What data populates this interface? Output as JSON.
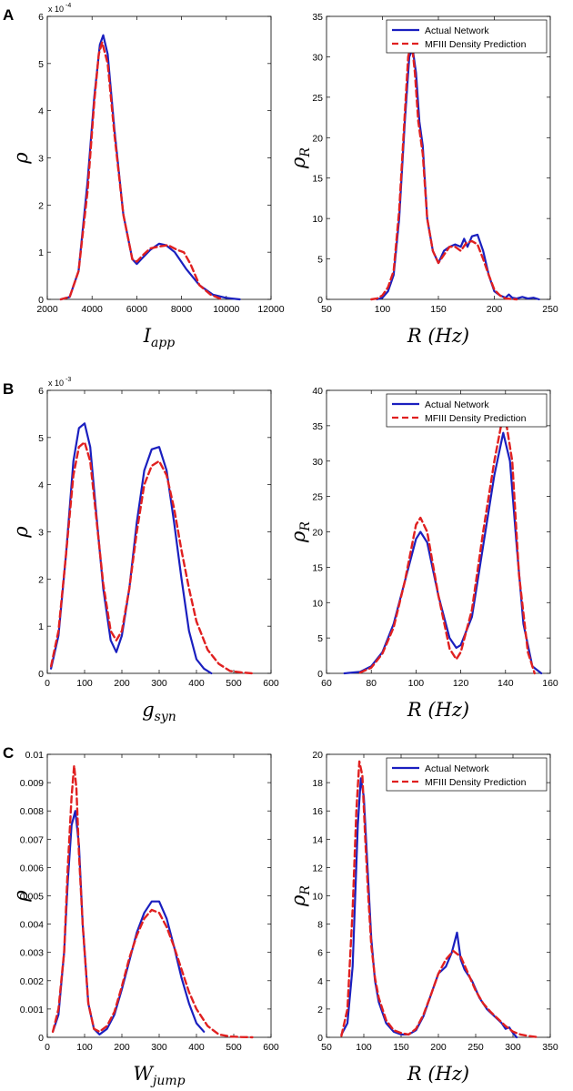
{
  "panel_labels": [
    "A",
    "B",
    "C"
  ],
  "colors": {
    "actual": "#1a1fbf",
    "predicted": "#e02020"
  },
  "chart_data": [
    {
      "type": "line",
      "panel": "A",
      "xlabel": "I",
      "xlabel_sub": "app",
      "ylabel": "ρ",
      "ylabel_sub": "",
      "xlim": [
        2000,
        12000
      ],
      "ylim": [
        0,
        6
      ],
      "y_multiplier": "x 10",
      "y_multiplier_exp": "-4",
      "xticks": [
        2000,
        4000,
        6000,
        8000,
        10000,
        12000
      ],
      "yticks": [
        0,
        1,
        2,
        3,
        4,
        5,
        6
      ],
      "xtick_labels": [
        "2000",
        "4000",
        "6000",
        "8000",
        "10000",
        "12000"
      ],
      "ytick_labels": [
        "0",
        "1",
        "2",
        "3",
        "4",
        "5",
        "6"
      ],
      "legend": null,
      "series": [
        {
          "name": "Actual Network",
          "x": [
            2600,
            3000,
            3400,
            3800,
            4100,
            4350,
            4500,
            4700,
            5000,
            5400,
            5800,
            6000,
            6200,
            6600,
            7000,
            7300,
            7700,
            8200,
            8800,
            9400,
            10000,
            10600
          ],
          "y": [
            0,
            0.05,
            0.6,
            2.5,
            4.3,
            5.4,
            5.6,
            5.2,
            3.6,
            1.8,
            0.85,
            0.75,
            0.85,
            1.05,
            1.18,
            1.15,
            1.0,
            0.65,
            0.3,
            0.1,
            0.03,
            0
          ]
        },
        {
          "name": "MFIII Density Prediction",
          "x": [
            2600,
            3000,
            3400,
            3800,
            4100,
            4300,
            4450,
            4700,
            5000,
            5400,
            5800,
            6000,
            6300,
            6600,
            7000,
            7400,
            7800,
            8100,
            8400,
            8800,
            9300,
            9800
          ],
          "y": [
            0,
            0.05,
            0.6,
            2.3,
            4.2,
            5.2,
            5.45,
            5.0,
            3.5,
            1.8,
            0.85,
            0.8,
            0.95,
            1.08,
            1.12,
            1.15,
            1.05,
            1.0,
            0.75,
            0.3,
            0.1,
            0
          ]
        }
      ]
    },
    {
      "type": "line",
      "panel": "A",
      "xlabel": "R (Hz)",
      "xlabel_sub": "",
      "ylabel": "ρ",
      "ylabel_sub": "R",
      "xlim": [
        50,
        250
      ],
      "ylim": [
        0,
        35
      ],
      "y_multiplier": "",
      "y_multiplier_exp": "",
      "xticks": [
        50,
        100,
        150,
        200,
        250
      ],
      "yticks": [
        0,
        5,
        10,
        15,
        20,
        25,
        30,
        35
      ],
      "xtick_labels": [
        "50",
        "100",
        "150",
        "200",
        "250"
      ],
      "ytick_labels": [
        "0",
        "5",
        "10",
        "15",
        "20",
        "25",
        "30",
        "35"
      ],
      "legend": [
        "Actual Network",
        "MFIII Density Prediction"
      ],
      "series": [
        {
          "name": "Actual Network",
          "x": [
            95,
            100,
            105,
            110,
            115,
            120,
            124,
            127,
            130,
            133,
            136,
            140,
            145,
            150,
            155,
            160,
            165,
            170,
            173,
            176,
            180,
            185,
            190,
            195,
            200,
            205,
            210,
            213,
            216,
            220,
            225,
            230,
            235,
            240
          ],
          "y": [
            0,
            0.2,
            1,
            3,
            10,
            22,
            30,
            31,
            28,
            22,
            19,
            10,
            6,
            4.5,
            6,
            6.5,
            6.8,
            6.5,
            7.5,
            6.5,
            7.8,
            8,
            6,
            3,
            1,
            0.5,
            0.2,
            0.6,
            0.2,
            0.1,
            0.3,
            0.1,
            0.2,
            0
          ]
        },
        {
          "name": "MFIII Density Prediction",
          "x": [
            90,
            95,
            100,
            105,
            110,
            115,
            120,
            123,
            126,
            129,
            132,
            136,
            140,
            145,
            150,
            155,
            160,
            165,
            170,
            175,
            180,
            185,
            190,
            195,
            200,
            205,
            210,
            220
          ],
          "y": [
            0,
            0.1,
            0.5,
            1.5,
            3.5,
            11,
            23,
            30,
            32,
            28,
            22,
            18,
            10,
            6,
            4.5,
            5.5,
            6.5,
            6.5,
            6,
            7,
            7.2,
            6.8,
            5,
            3,
            1.2,
            0.5,
            0.1,
            0
          ]
        }
      ]
    },
    {
      "type": "line",
      "panel": "B",
      "xlabel": "g",
      "xlabel_sub": "syn",
      "ylabel": "ρ",
      "ylabel_sub": "",
      "xlim": [
        0,
        600
      ],
      "ylim": [
        0,
        6
      ],
      "y_multiplier": "x 10",
      "y_multiplier_exp": "-3",
      "xticks": [
        0,
        100,
        200,
        300,
        400,
        500,
        600
      ],
      "yticks": [
        0,
        1,
        2,
        3,
        4,
        5,
        6
      ],
      "xtick_labels": [
        "0",
        "100",
        "200",
        "300",
        "400",
        "500",
        "600"
      ],
      "ytick_labels": [
        "0",
        "1",
        "2",
        "3",
        "4",
        "5",
        "6"
      ],
      "legend": null,
      "series": [
        {
          "name": "Actual Network",
          "x": [
            10,
            30,
            50,
            70,
            85,
            100,
            115,
            130,
            150,
            170,
            185,
            200,
            220,
            240,
            260,
            280,
            300,
            320,
            340,
            360,
            380,
            400,
            420,
            440
          ],
          "y": [
            0.1,
            0.8,
            2.5,
            4.5,
            5.2,
            5.3,
            4.8,
            3.5,
            1.8,
            0.7,
            0.45,
            0.8,
            1.8,
            3.2,
            4.3,
            4.75,
            4.8,
            4.3,
            3.2,
            2.0,
            0.9,
            0.3,
            0.1,
            0
          ]
        },
        {
          "name": "MFIII Density Prediction",
          "x": [
            10,
            30,
            50,
            70,
            85,
            100,
            115,
            130,
            150,
            170,
            185,
            200,
            220,
            240,
            260,
            280,
            300,
            320,
            340,
            360,
            380,
            400,
            430,
            460,
            490,
            520,
            550
          ],
          "y": [
            0.15,
            0.9,
            2.5,
            4.2,
            4.8,
            4.9,
            4.5,
            3.4,
            1.9,
            0.9,
            0.7,
            0.9,
            1.8,
            3.0,
            4.0,
            4.4,
            4.5,
            4.2,
            3.5,
            2.6,
            1.8,
            1.1,
            0.5,
            0.2,
            0.05,
            0.02,
            0
          ]
        }
      ]
    },
    {
      "type": "line",
      "panel": "B",
      "xlabel": "R (Hz)",
      "xlabel_sub": "",
      "ylabel": "ρ",
      "ylabel_sub": "R",
      "xlim": [
        60,
        160
      ],
      "ylim": [
        0,
        40
      ],
      "y_multiplier": "",
      "y_multiplier_exp": "",
      "xticks": [
        60,
        80,
        100,
        120,
        140,
        160
      ],
      "yticks": [
        0,
        5,
        10,
        15,
        20,
        25,
        30,
        35,
        40
      ],
      "xtick_labels": [
        "60",
        "80",
        "100",
        "120",
        "140",
        "160"
      ],
      "ytick_labels": [
        "0",
        "5",
        "10",
        "15",
        "20",
        "25",
        "30",
        "35",
        "40"
      ],
      "legend": [
        "Actual Network",
        "MFIII Density Prediction"
      ],
      "series": [
        {
          "name": "Actual Network",
          "x": [
            68,
            75,
            80,
            85,
            90,
            95,
            100,
            102,
            105,
            110,
            115,
            118,
            120,
            125,
            130,
            135,
            139,
            142,
            145,
            148,
            152,
            156
          ],
          "y": [
            0,
            0.2,
            1,
            3,
            7,
            13,
            19,
            20,
            18.5,
            11,
            5,
            3.6,
            4,
            8,
            18,
            28,
            34,
            30,
            18,
            7,
            1,
            0
          ]
        },
        {
          "name": "MFIII Density Prediction",
          "x": [
            75,
            80,
            85,
            90,
            95,
            100,
            102,
            105,
            110,
            115,
            118,
            120,
            125,
            130,
            135,
            138,
            140,
            143,
            146,
            150,
            153
          ],
          "y": [
            0.1,
            0.8,
            2.8,
            6.5,
            13,
            21,
            22,
            20,
            11,
            3.5,
            2,
            3,
            9,
            20,
            30,
            35,
            36,
            30,
            14,
            3,
            0
          ]
        }
      ]
    },
    {
      "type": "line",
      "panel": "C",
      "xlabel": "W",
      "xlabel_sub": "jump",
      "ylabel": "ρ",
      "ylabel_sub": "",
      "xlim": [
        0,
        600
      ],
      "ylim": [
        0,
        0.01
      ],
      "y_multiplier": "",
      "y_multiplier_exp": "",
      "xticks": [
        0,
        100,
        200,
        300,
        400,
        500,
        600
      ],
      "yticks": [
        0,
        0.001,
        0.002,
        0.003,
        0.004,
        0.005,
        0.006,
        0.007,
        0.008,
        0.009,
        0.01
      ],
      "xtick_labels": [
        "0",
        "100",
        "200",
        "300",
        "400",
        "500",
        "600"
      ],
      "ytick_labels": [
        "0",
        "0.001",
        "0.002",
        "0.003",
        "0.004",
        "0.005",
        "0.006",
        "0.007",
        "0.008",
        "0.009",
        "0.01"
      ],
      "legend": null,
      "series": [
        {
          "name": "Actual Network",
          "x": [
            15,
            30,
            45,
            55,
            65,
            75,
            85,
            95,
            110,
            125,
            140,
            160,
            180,
            200,
            220,
            240,
            260,
            280,
            300,
            320,
            340,
            360,
            380,
            400,
            420
          ],
          "y": [
            0.0002,
            0.0008,
            0.003,
            0.0055,
            0.0075,
            0.008,
            0.0068,
            0.004,
            0.0012,
            0.0003,
            0.0001,
            0.0003,
            0.0008,
            0.0017,
            0.0027,
            0.0037,
            0.0044,
            0.0048,
            0.0048,
            0.0042,
            0.0032,
            0.0021,
            0.0012,
            0.0005,
            0.0002
          ]
        },
        {
          "name": "MFIII Density Prediction",
          "x": [
            15,
            30,
            45,
            55,
            65,
            72,
            78,
            85,
            95,
            110,
            125,
            140,
            160,
            180,
            200,
            220,
            240,
            260,
            280,
            300,
            320,
            340,
            360,
            380,
            400,
            430,
            460,
            490,
            520,
            550
          ],
          "y": [
            0.0002,
            0.001,
            0.003,
            0.006,
            0.0085,
            0.0096,
            0.0088,
            0.0065,
            0.004,
            0.0012,
            0.0003,
            0.0002,
            0.0004,
            0.0009,
            0.0018,
            0.0028,
            0.0036,
            0.0042,
            0.0045,
            0.0044,
            0.0039,
            0.0032,
            0.0024,
            0.0016,
            0.001,
            0.0004,
            0.0001,
            3e-05,
            1e-05,
            0
          ]
        }
      ]
    },
    {
      "type": "line",
      "panel": "C",
      "xlabel": "R (Hz)",
      "xlabel_sub": "",
      "ylabel": "ρ",
      "ylabel_sub": "R",
      "xlim": [
        50,
        350
      ],
      "ylim": [
        0,
        20
      ],
      "y_multiplier": "",
      "y_multiplier_exp": "",
      "xticks": [
        50,
        100,
        150,
        200,
        250,
        300,
        350
      ],
      "yticks": [
        0,
        2,
        4,
        6,
        8,
        10,
        12,
        14,
        16,
        18,
        20
      ],
      "xtick_labels": [
        "50",
        "100",
        "150",
        "200",
        "250",
        "300",
        "350"
      ],
      "ytick_labels": [
        "0",
        "2",
        "4",
        "6",
        "8",
        "10",
        "12",
        "14",
        "16",
        "18",
        "20"
      ],
      "legend": [
        "Actual Network",
        "MFIII Density Prediction"
      ],
      "series": [
        {
          "name": "Actual Network",
          "x": [
            70,
            78,
            85,
            92,
            96,
            100,
            105,
            110,
            115,
            120,
            130,
            140,
            150,
            160,
            170,
            180,
            190,
            200,
            210,
            218,
            225,
            230,
            235,
            245,
            255,
            265,
            275,
            285,
            290,
            295,
            300,
            305
          ],
          "y": [
            0.2,
            1,
            5,
            15,
            18.3,
            17,
            12,
            7,
            4,
            2.5,
            1,
            0.4,
            0.2,
            0.2,
            0.5,
            1.5,
            3,
            4.5,
            5,
            6,
            7.4,
            5.5,
            4.8,
            4,
            2.8,
            2,
            1.5,
            1,
            0.6,
            0.7,
            0.3,
            0
          ]
        },
        {
          "name": "MFIII Density Prediction",
          "x": [
            70,
            78,
            85,
            90,
            94,
            98,
            102,
            106,
            110,
            115,
            120,
            130,
            140,
            150,
            160,
            170,
            180,
            190,
            200,
            210,
            220,
            230,
            240,
            250,
            260,
            270,
            280,
            290,
            300,
            310,
            320,
            335
          ],
          "y": [
            0.1,
            2,
            9,
            16,
            19.5,
            18.5,
            14,
            10,
            6.5,
            4.2,
            2.8,
            1.2,
            0.5,
            0.3,
            0.2,
            0.6,
            1.6,
            3,
            4.5,
            5.5,
            6.1,
            5.7,
            4.5,
            3.3,
            2.4,
            1.8,
            1.3,
            0.8,
            0.4,
            0.2,
            0.1,
            0
          ]
        }
      ]
    }
  ]
}
